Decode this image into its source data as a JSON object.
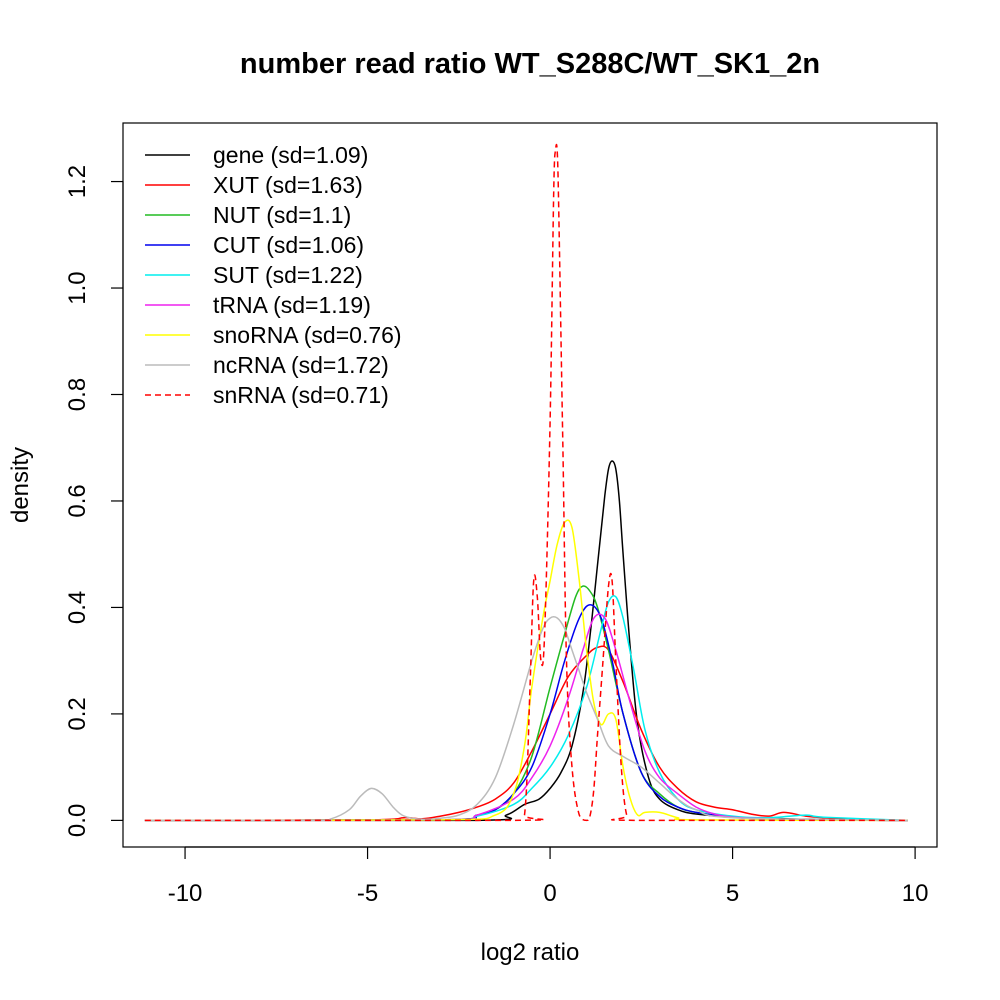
{
  "chart_data": {
    "type": "line",
    "title": "number read ratio WT_S288C/WT_SK1_2n",
    "xlabel": "log2 ratio",
    "ylabel": "density",
    "xlim": [
      -11.7,
      10.6
    ],
    "ylim": [
      -0.05,
      1.31
    ],
    "xticks": [
      -10,
      -5,
      0,
      5,
      10
    ],
    "xtick_labels": [
      "-10",
      "-5",
      "0",
      "5",
      "10"
    ],
    "yticks": [
      0.0,
      0.2,
      0.4,
      0.6,
      0.8,
      1.0,
      1.2
    ],
    "ytick_labels": [
      "0.0",
      "0.2",
      "0.4",
      "0.6",
      "0.8",
      "1.0",
      "1.2"
    ],
    "grid": false,
    "legend_position": "top-left",
    "series": [
      {
        "name": "gene (sd=1.09)",
        "color": "#000000",
        "dash": false,
        "x": [
          -11.1,
          -2,
          -1.2,
          -0.7,
          -0.3,
          0,
          0.3,
          0.6,
          0.9,
          1.1,
          1.3,
          1.5,
          1.6,
          1.7,
          1.8,
          1.9,
          2.0,
          2.2,
          2.4,
          2.7,
          3.0,
          3.5,
          4.0,
          5,
          6,
          7,
          8,
          9.8
        ],
        "y": [
          0,
          0,
          0.01,
          0.03,
          0.04,
          0.06,
          0.09,
          0.14,
          0.24,
          0.35,
          0.48,
          0.61,
          0.66,
          0.675,
          0.66,
          0.6,
          0.5,
          0.32,
          0.18,
          0.08,
          0.04,
          0.02,
          0.012,
          0.006,
          0.004,
          0.002,
          0.001,
          0
        ]
      },
      {
        "name": "XUT (sd=1.63)",
        "color": "#ff0000",
        "dash": false,
        "x": [
          -11.1,
          -5,
          -4,
          -3.5,
          -3,
          -2.5,
          -2,
          -1.5,
          -1,
          -0.5,
          0,
          0.5,
          1.0,
          1.3,
          1.6,
          2.0,
          2.5,
          3.0,
          3.5,
          4.0,
          4.5,
          5.0,
          5.5,
          6.0,
          6.4,
          7.0,
          7.5,
          8.0,
          9.8
        ],
        "y": [
          0,
          0.001,
          0.005,
          0.003,
          0.008,
          0.015,
          0.025,
          0.04,
          0.07,
          0.13,
          0.2,
          0.27,
          0.31,
          0.325,
          0.32,
          0.26,
          0.17,
          0.1,
          0.06,
          0.035,
          0.025,
          0.02,
          0.012,
          0.008,
          0.015,
          0.008,
          0.005,
          0.003,
          0
        ]
      },
      {
        "name": "NUT (sd=1.1)",
        "color": "#22bb22",
        "dash": false,
        "x": [
          -11.1,
          -3,
          -2,
          -1.5,
          -1,
          -0.5,
          0,
          0.4,
          0.7,
          0.9,
          1.1,
          1.3,
          1.6,
          2.0,
          2.5,
          3.0,
          3.5,
          4.0,
          5,
          6,
          7,
          9.8
        ],
        "y": [
          0,
          0.001,
          0.01,
          0.02,
          0.05,
          0.12,
          0.25,
          0.35,
          0.42,
          0.44,
          0.43,
          0.4,
          0.32,
          0.2,
          0.09,
          0.05,
          0.025,
          0.015,
          0.006,
          0.003,
          0.001,
          0
        ]
      },
      {
        "name": "CUT (sd=1.06)",
        "color": "#0000ee",
        "dash": false,
        "x": [
          -11.1,
          -3,
          -2,
          -1.5,
          -1,
          -0.5,
          0,
          0.4,
          0.8,
          1.1,
          1.4,
          1.7,
          2.0,
          2.5,
          3.0,
          3.5,
          4.0,
          5,
          6,
          7,
          9.8
        ],
        "y": [
          0,
          0.001,
          0.01,
          0.02,
          0.05,
          0.1,
          0.2,
          0.3,
          0.38,
          0.405,
          0.38,
          0.3,
          0.2,
          0.09,
          0.045,
          0.025,
          0.015,
          0.006,
          0.003,
          0.001,
          0
        ]
      },
      {
        "name": "SUT (sd=1.22)",
        "color": "#00eeee",
        "dash": false,
        "x": [
          -11.1,
          -3,
          -2,
          -1,
          -0.5,
          0,
          0.5,
          1.0,
          1.4,
          1.6,
          1.8,
          2.0,
          2.3,
          2.6,
          3.0,
          3.5,
          4.0,
          5,
          6,
          7,
          7.5,
          9.8
        ],
        "y": [
          0,
          0.001,
          0.008,
          0.03,
          0.06,
          0.1,
          0.16,
          0.25,
          0.36,
          0.41,
          0.42,
          0.38,
          0.28,
          0.17,
          0.09,
          0.04,
          0.02,
          0.008,
          0.005,
          0.01,
          0.006,
          0
        ]
      },
      {
        "name": "tRNA (sd=1.19)",
        "color": "#ee22ee",
        "dash": false,
        "x": [
          -11.1,
          -3,
          -2,
          -1,
          -0.5,
          0,
          0.5,
          0.9,
          1.2,
          1.5,
          1.8,
          2.2,
          2.6,
          3.0,
          3.5,
          4.0,
          4.5,
          5,
          6,
          7,
          9.8
        ],
        "y": [
          0,
          0.001,
          0.01,
          0.04,
          0.08,
          0.14,
          0.23,
          0.32,
          0.38,
          0.38,
          0.32,
          0.22,
          0.13,
          0.08,
          0.05,
          0.025,
          0.012,
          0.006,
          0.003,
          0.001,
          0
        ]
      },
      {
        "name": "snoRNA (sd=0.76)",
        "color": "#ffff00",
        "dash": false,
        "x": [
          -11.1,
          -3,
          -1.5,
          -1,
          -0.7,
          -0.5,
          -0.2,
          0,
          0.2,
          0.4,
          0.6,
          0.8,
          1.0,
          1.2,
          1.4,
          1.6,
          1.8,
          2.0,
          2.2,
          2.4,
          2.6,
          3.0,
          3.5,
          4.0,
          9.8
        ],
        "y": [
          0,
          0.001,
          0.01,
          0.05,
          0.14,
          0.25,
          0.38,
          0.45,
          0.52,
          0.56,
          0.55,
          0.45,
          0.32,
          0.22,
          0.18,
          0.2,
          0.19,
          0.1,
          0.04,
          0.01,
          0.015,
          0.015,
          0.005,
          0.001,
          0
        ]
      },
      {
        "name": "ncRNA (sd=1.72)",
        "color": "#bbbbbb",
        "dash": false,
        "x": [
          -11.1,
          -6.5,
          -6,
          -5.5,
          -5.2,
          -4.9,
          -4.6,
          -4.3,
          -4,
          -3.5,
          -3,
          -2.5,
          -2,
          -1.5,
          -1,
          -0.5,
          -0.2,
          0,
          0.2,
          0.4,
          0.6,
          0.8,
          1.0,
          1.3,
          1.6,
          2.0,
          2.5,
          3.0,
          3.5,
          4.0,
          5,
          9.8
        ],
        "y": [
          0,
          0,
          0.003,
          0.02,
          0.045,
          0.06,
          0.05,
          0.025,
          0.008,
          0.002,
          0.004,
          0.01,
          0.03,
          0.08,
          0.18,
          0.3,
          0.36,
          0.38,
          0.38,
          0.36,
          0.32,
          0.28,
          0.24,
          0.19,
          0.14,
          0.12,
          0.1,
          0.07,
          0.04,
          0.02,
          0.005,
          0
        ]
      },
      {
        "name": "snRNA (sd=0.71)",
        "color": "#ff0000",
        "dash": true,
        "x": [
          -11.1,
          -1.0,
          -0.7,
          -0.55,
          -0.45,
          -0.35,
          -0.25,
          -0.15,
          0,
          0.1,
          0.15,
          0.2,
          0.25,
          0.35,
          0.45,
          0.6,
          0.8,
          1.0,
          1.1,
          1.2,
          1.3,
          1.45,
          1.6,
          1.7,
          1.8,
          1.95,
          2.1,
          2.3,
          9.8
        ],
        "y": [
          0,
          0,
          0.01,
          0.25,
          0.45,
          0.42,
          0.3,
          0.35,
          0.75,
          1.18,
          1.26,
          1.25,
          1.1,
          0.7,
          0.3,
          0.1,
          0.01,
          0,
          0.01,
          0.06,
          0.16,
          0.3,
          0.44,
          0.45,
          0.3,
          0.1,
          0.01,
          0,
          0
        ]
      }
    ]
  }
}
